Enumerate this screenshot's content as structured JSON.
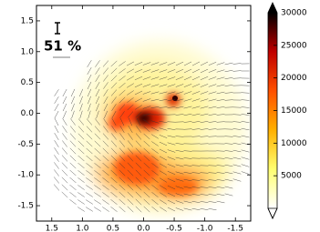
{
  "chart_data": {
    "type": "heatmap",
    "annotation": "51 %",
    "xlim": [
      1.75,
      -1.75
    ],
    "xticks": [
      {
        "value": 1.5,
        "label": "1.5"
      },
      {
        "value": 1.0,
        "label": "1.0"
      },
      {
        "value": 0.5,
        "label": "0.5"
      },
      {
        "value": 0.0,
        "label": "0.0"
      },
      {
        "value": -0.5,
        "label": "-0.5"
      },
      {
        "value": -1.0,
        "label": "-1.0"
      },
      {
        "value": -1.5,
        "label": "-1.5"
      }
    ],
    "ylim": [
      -1.75,
      1.75
    ],
    "yticks": [
      {
        "value": 1.5,
        "label": "1.5"
      },
      {
        "value": 1.0,
        "label": "1.0"
      },
      {
        "value": 0.5,
        "label": "0.5"
      },
      {
        "value": 0.0,
        "label": "0.0"
      },
      {
        "value": -0.5,
        "label": "-0.5"
      },
      {
        "value": -1.0,
        "label": "-1.0"
      },
      {
        "value": -1.5,
        "label": "-1.5"
      }
    ],
    "colorbar": {
      "lim": [
        0,
        30000
      ],
      "ticks": [
        5000,
        10000,
        15000,
        20000,
        25000,
        30000
      ],
      "colors": [
        "#ffffff",
        "#ffff70",
        "#ffb000",
        "#ff5000",
        "#c00000",
        "#000000"
      ]
    }
  }
}
